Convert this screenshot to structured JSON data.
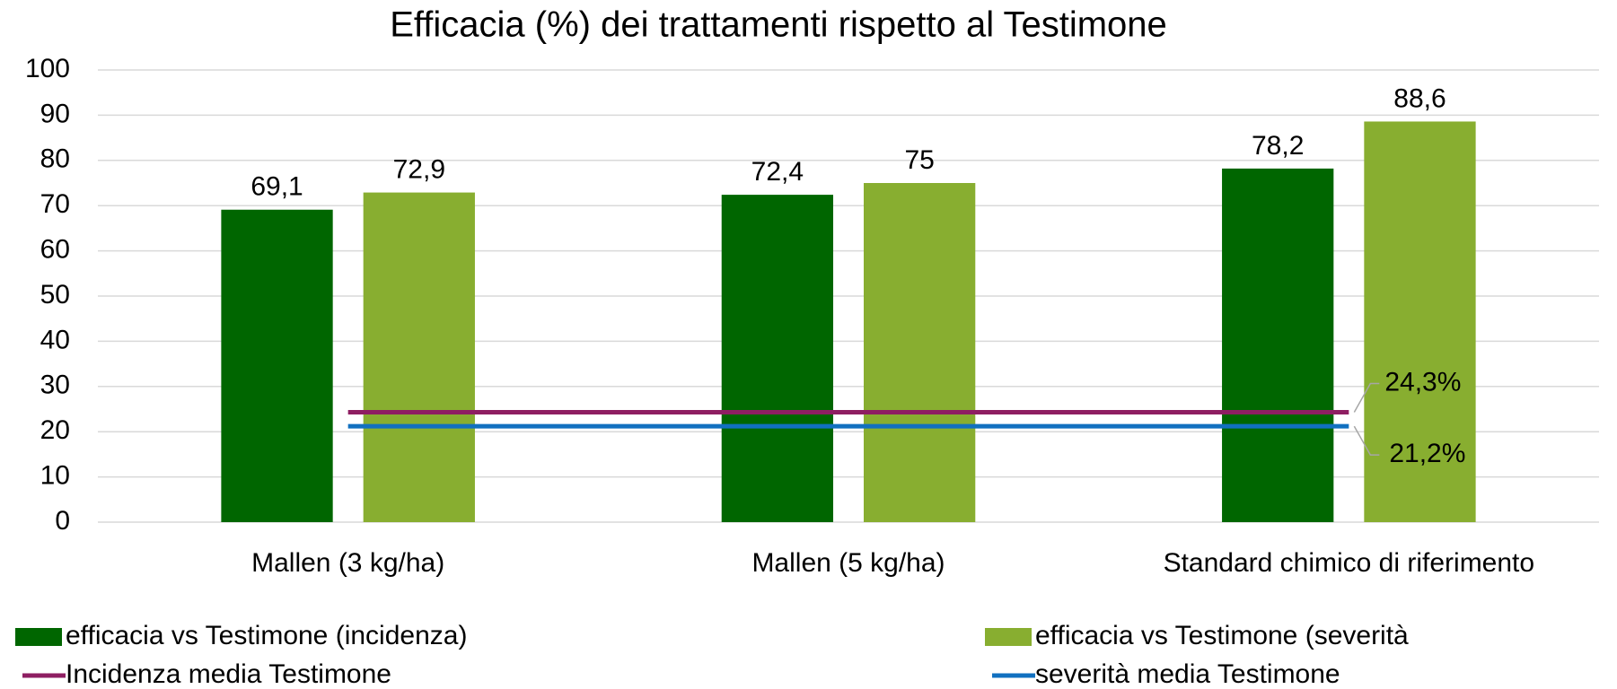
{
  "chart_data": {
    "type": "bar",
    "title": "Efficacia (%) dei trattamenti rispetto al Testimone",
    "categories": [
      "Mallen (3 kg/ha)",
      "Mallen (5 kg/ha)",
      "Standard chimico di riferimento"
    ],
    "series": [
      {
        "name": "efficacia vs Testimone (incidenza)",
        "type": "bar",
        "color": "#006600",
        "values": [
          69.1,
          72.4,
          78.2
        ],
        "value_labels": [
          "69,1",
          "72,4",
          "78,2"
        ]
      },
      {
        "name": "efficacia vs Testimone (severità",
        "type": "bar",
        "color": "#88ae30",
        "values": [
          72.9,
          75,
          88.6
        ],
        "value_labels": [
          "72,9",
          "75",
          "88,6"
        ]
      },
      {
        "name": "Incidenza media Testimone",
        "type": "line",
        "color": "#8e1e62",
        "values": [
          24.3,
          24.3,
          24.3
        ],
        "value_labels": [
          null,
          null,
          "24,3%"
        ]
      },
      {
        "name": "severità media Testimone",
        "type": "line",
        "color": "#1170c0",
        "values": [
          21.2,
          21.2,
          21.2
        ],
        "value_labels": [
          null,
          null,
          "21,2%"
        ]
      }
    ],
    "ylim": [
      0,
      100
    ],
    "yticks": [
      0,
      10,
      20,
      30,
      40,
      50,
      60,
      70,
      80,
      90,
      100
    ],
    "grid": true,
    "legend": "bottom"
  }
}
